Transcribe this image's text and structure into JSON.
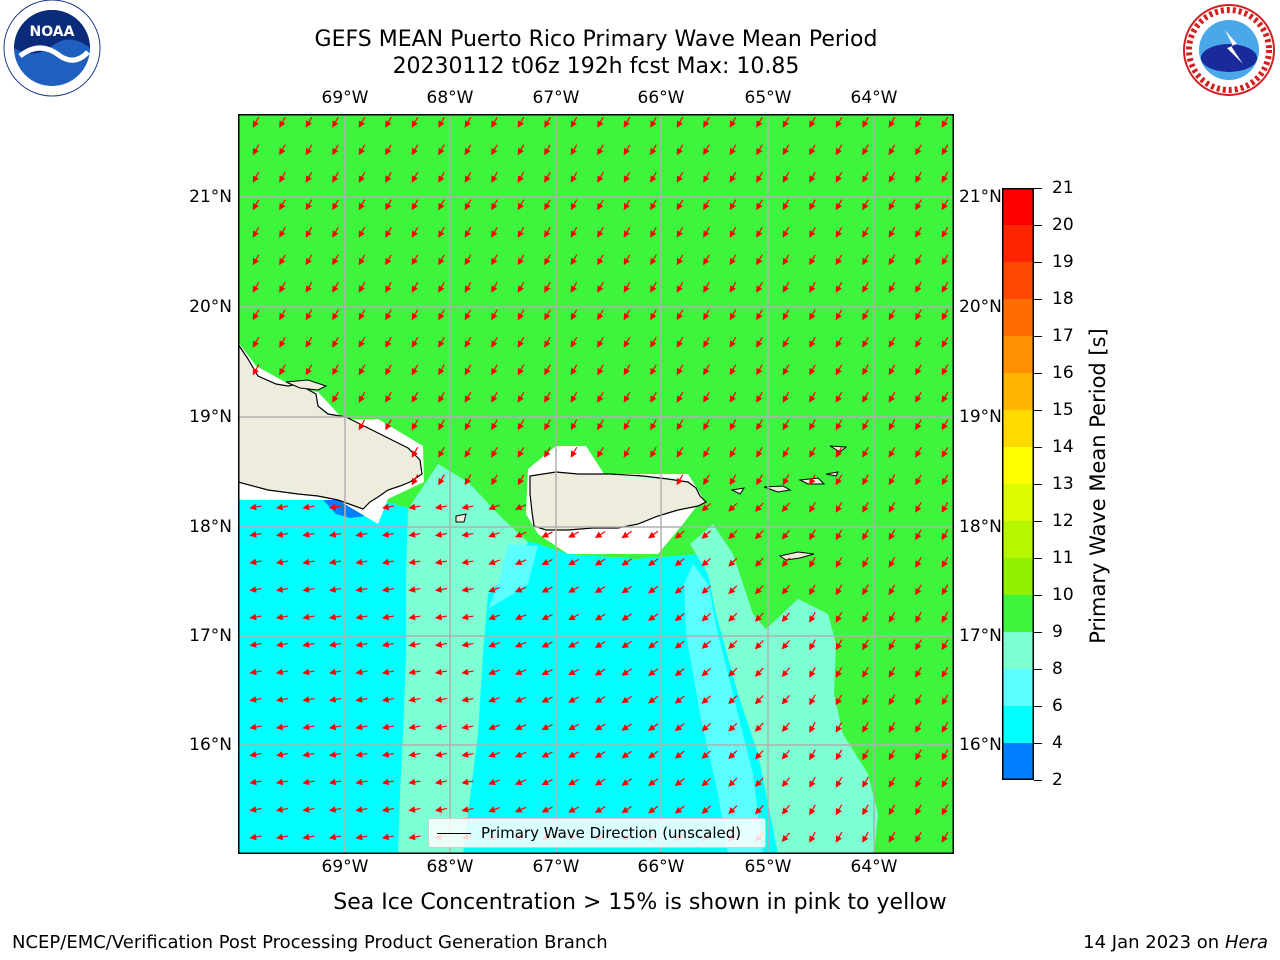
{
  "title_line1": "GEFS MEAN Puerto Rico Primary Wave Mean Period",
  "title_line2": "20230112 t06z 192h fcst   Max: 10.85",
  "logos": {
    "left": "noaa-logo",
    "right": "national-weather-service-logo",
    "left_text": "NOAA",
    "right_text": "NATIONAL WEATHER SERVICE"
  },
  "lon_labels": [
    "69°W",
    "68°W",
    "67°W",
    "66°W",
    "65°W",
    "64°W"
  ],
  "lat_labels": [
    "21°N",
    "20°N",
    "19°N",
    "18°N",
    "17°N",
    "16°N"
  ],
  "legend_label": "Primary Wave Direction (unscaled)",
  "colorbar": {
    "label": "Primary Wave Mean Period [s]",
    "ticks": [
      "21",
      "20",
      "19",
      "18",
      "17",
      "16",
      "15",
      "14",
      "13",
      "12",
      "11",
      "10",
      "9",
      "8",
      "6",
      "4",
      "2"
    ],
    "colors": [
      "#ff0000",
      "#ff2400",
      "#ff4800",
      "#ff6d00",
      "#ff9100",
      "#ffb600",
      "#ffda00",
      "#ffff00",
      "#dafb00",
      "#b6f700",
      "#91f200",
      "#48e900",
      "#24e400",
      "#3ef53e",
      "#7fffd4",
      "#5cffff",
      "#00ffff",
      "#0080ff",
      "#0000ff"
    ]
  },
  "ice_note": "Sea Ice Concentration > 15% is shown in pink to yellow",
  "footer_left": "NCEP/EMC/Verification Post Processing Product Generation Branch",
  "footer_right_date": "14 Jan 2023 on ",
  "footer_right_machine": "Hera",
  "colors": {
    "green": "#3ef53e",
    "aquamarine": "#7fffd4",
    "cyan": "#00ffff",
    "land": "#eeeddd",
    "arrow": "#ff0000",
    "grid": "#b0b0b0"
  }
}
